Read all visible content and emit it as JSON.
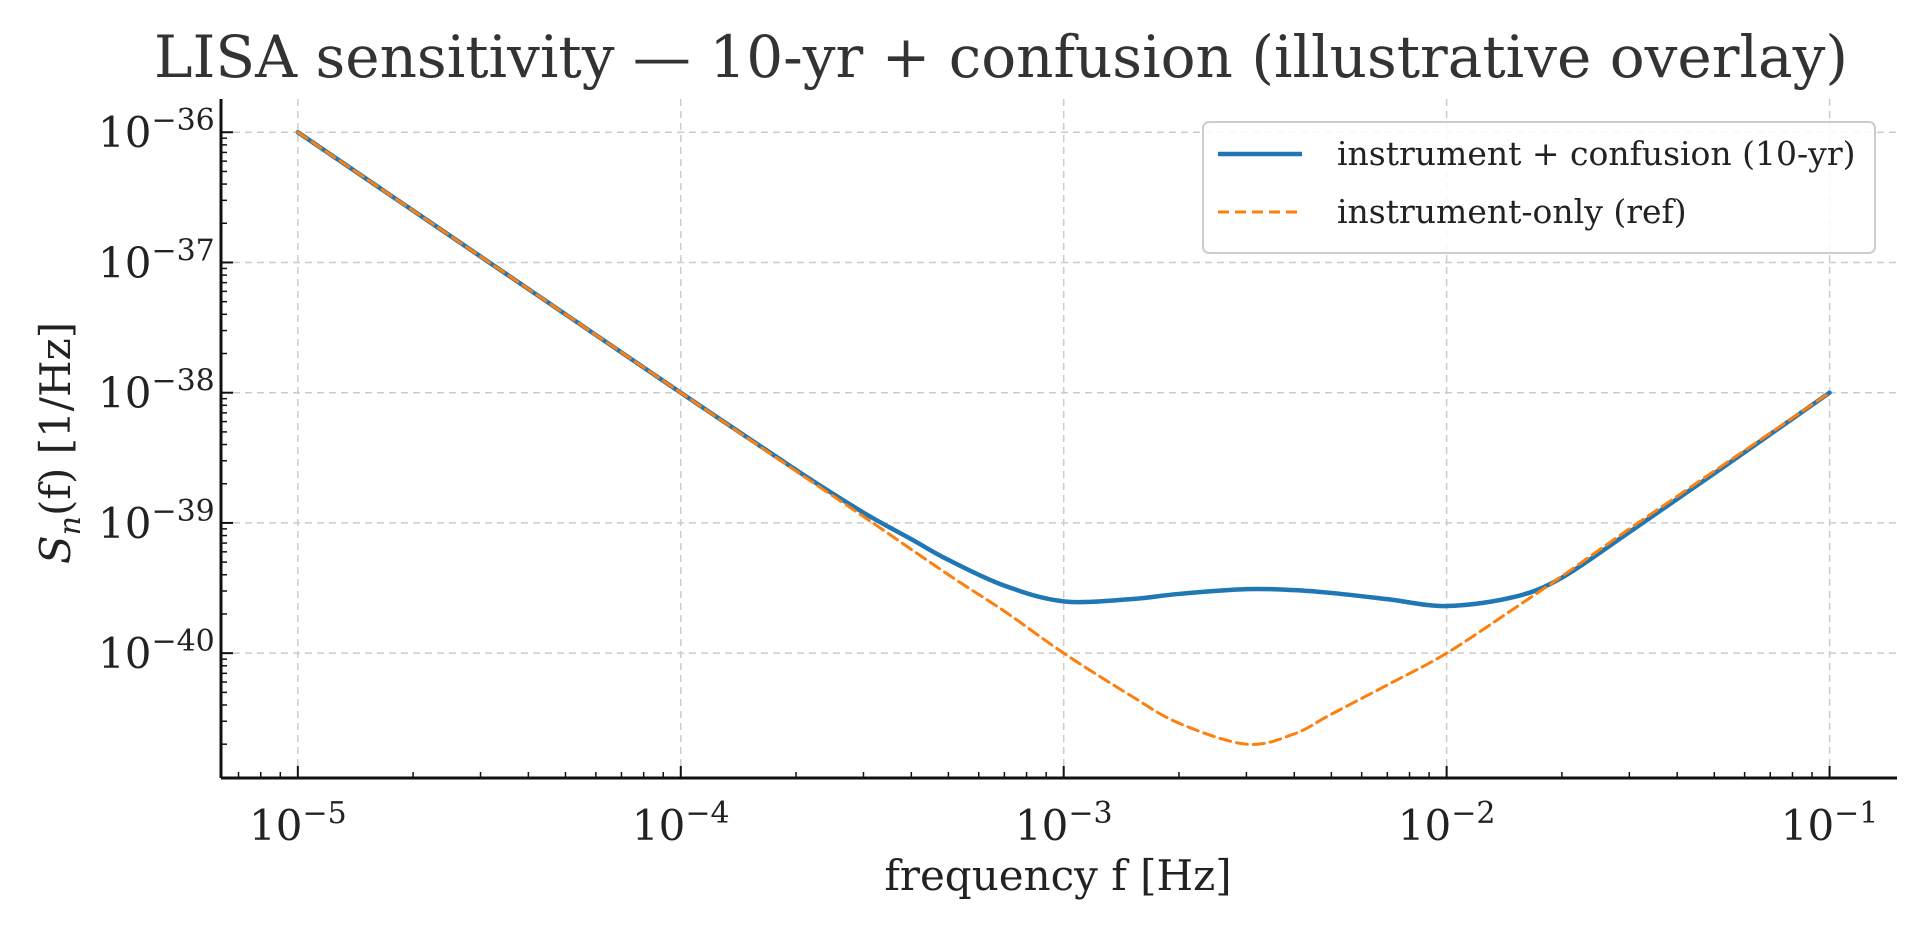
{
  "chart_data": {
    "type": "line",
    "title": "LISA sensitivity — 10-yr + confusion (illustrative overlay)",
    "xlabel": "frequency f [Hz]",
    "ylabel": "S",
    "ylabel_subscript": "n",
    "ylabel_suffix": "(f) [1/Hz]",
    "xscale": "log",
    "yscale": "log",
    "xlim": [
      6.3e-06,
      0.15
    ],
    "ylim": [
      1.1e-41,
      1.8e-36
    ],
    "grid": true,
    "legend_position": "top-right",
    "xticks": [
      {
        "value": 1e-05,
        "base": "10",
        "exp": "−5"
      },
      {
        "value": 0.0001,
        "base": "10",
        "exp": "−4"
      },
      {
        "value": 0.001,
        "base": "10",
        "exp": "−3"
      },
      {
        "value": 0.01,
        "base": "10",
        "exp": "−2"
      },
      {
        "value": 0.1,
        "base": "10",
        "exp": "−1"
      }
    ],
    "yticks": [
      {
        "value": 1e-36,
        "base": "10",
        "exp": "−36"
      },
      {
        "value": 1e-37,
        "base": "10",
        "exp": "−37"
      },
      {
        "value": 1e-38,
        "base": "10",
        "exp": "−38"
      },
      {
        "value": 1e-39,
        "base": "10",
        "exp": "−39"
      },
      {
        "value": 1e-40,
        "base": "10",
        "exp": "−40"
      }
    ],
    "series": [
      {
        "name": "instrument + confusion (10-yr)",
        "color": "#1f77b4",
        "style": "solid",
        "x": [
          1e-05,
          2e-05,
          5e-05,
          0.0001,
          0.0002,
          0.0003,
          0.0004,
          0.0005,
          0.0007,
          0.001,
          0.0015,
          0.002,
          0.003,
          0.004,
          0.005,
          0.007,
          0.01,
          0.015,
          0.02,
          0.03,
          0.05,
          0.1
        ],
        "y": [
          1e-36,
          2.5e-37,
          4e-38,
          1e-38,
          2.55e-39,
          1.2e-39,
          7.5e-40,
          5.2e-40,
          3.3e-40,
          2.5e-40,
          2.6e-40,
          2.85e-40,
          3.1e-40,
          3.05e-40,
          2.9e-40,
          2.6e-40,
          2.3e-40,
          2.7e-40,
          3.8e-40,
          8.5e-40,
          2.4e-39,
          1e-38
        ]
      },
      {
        "name": "instrument-only (ref)",
        "color": "#ff7f0e",
        "style": "dashed",
        "x": [
          1e-05,
          2e-05,
          5e-05,
          0.0001,
          0.0002,
          0.0003,
          0.0005,
          0.0007,
          0.001,
          0.0015,
          0.002,
          0.003,
          0.004,
          0.005,
          0.007,
          0.01,
          0.015,
          0.02,
          0.03,
          0.05,
          0.1
        ],
        "y": [
          1e-36,
          2.5e-37,
          4e-38,
          1e-38,
          2.5e-39,
          1.12e-39,
          4e-40,
          2.1e-40,
          1e-40,
          4.7e-41,
          2.9e-41,
          2e-41,
          2.4e-41,
          3.4e-41,
          5.7e-41,
          1e-40,
          2.2e-40,
          3.9e-40,
          9e-40,
          2.5e-39,
          1e-38
        ]
      }
    ]
  },
  "colors": {
    "grid": "#cccccc",
    "axis": "#111111",
    "legend_border": "#cccccc"
  }
}
